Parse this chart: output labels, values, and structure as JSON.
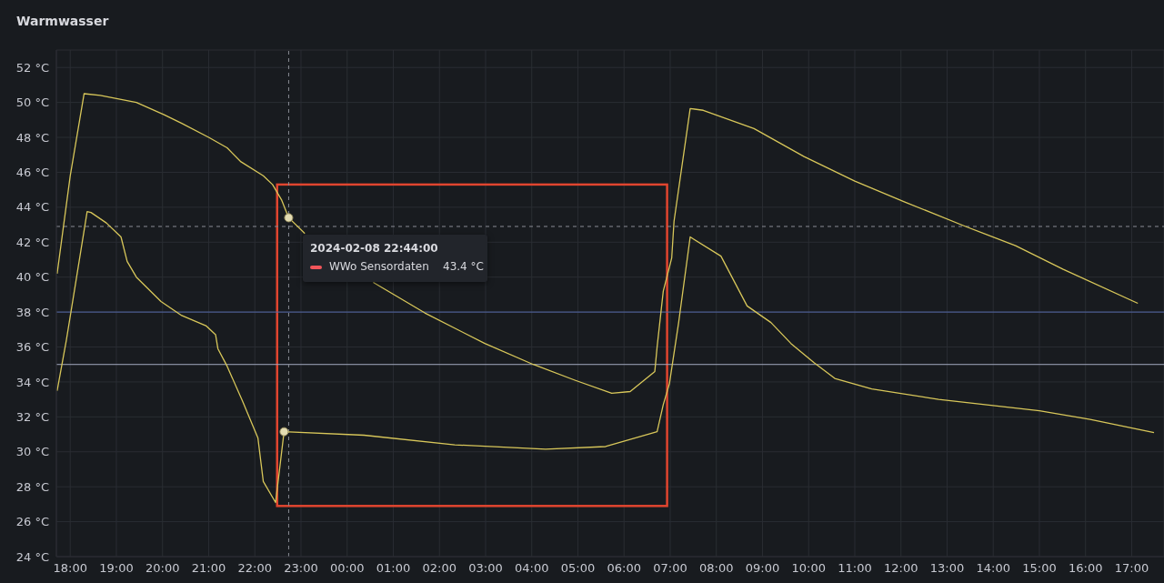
{
  "chart_data": {
    "type": "line",
    "title": "Warmwasser",
    "xlim": [
      "2024-02-08T17:42",
      "2024-02-09T17:42"
    ],
    "xticks": [
      {
        "value": "2024-02-08T18:00",
        "label": "18:00"
      },
      {
        "value": "2024-02-08T19:00",
        "label": "19:00"
      },
      {
        "value": "2024-02-08T20:00",
        "label": "20:00"
      },
      {
        "value": "2024-02-08T21:00",
        "label": "21:00"
      },
      {
        "value": "2024-02-08T22:00",
        "label": "22:00"
      },
      {
        "value": "2024-02-08T23:00",
        "label": "23:00"
      },
      {
        "value": "2024-02-09T00:00",
        "label": "00:00"
      },
      {
        "value": "2024-02-09T01:00",
        "label": "01:00"
      },
      {
        "value": "2024-02-09T02:00",
        "label": "02:00"
      },
      {
        "value": "2024-02-09T03:00",
        "label": "03:00"
      },
      {
        "value": "2024-02-09T04:00",
        "label": "04:00"
      },
      {
        "value": "2024-02-09T05:00",
        "label": "05:00"
      },
      {
        "value": "2024-02-09T06:00",
        "label": "06:00"
      },
      {
        "value": "2024-02-09T07:00",
        "label": "07:00"
      },
      {
        "value": "2024-02-09T08:00",
        "label": "08:00"
      },
      {
        "value": "2024-02-09T09:00",
        "label": "09:00"
      },
      {
        "value": "2024-02-09T10:00",
        "label": "10:00"
      },
      {
        "value": "2024-02-09T11:00",
        "label": "11:00"
      },
      {
        "value": "2024-02-09T12:00",
        "label": "12:00"
      },
      {
        "value": "2024-02-09T13:00",
        "label": "13:00"
      },
      {
        "value": "2024-02-09T14:00",
        "label": "14:00"
      },
      {
        "value": "2024-02-09T15:00",
        "label": "15:00"
      },
      {
        "value": "2024-02-09T16:00",
        "label": "16:00"
      },
      {
        "value": "2024-02-09T17:00",
        "label": "17:00"
      }
    ],
    "ylim": [
      24,
      53
    ],
    "yticks": [
      {
        "value": 24,
        "label": "24 °C"
      },
      {
        "value": 26,
        "label": "26 °C"
      },
      {
        "value": 28,
        "label": "28 °C"
      },
      {
        "value": 30,
        "label": "30 °C"
      },
      {
        "value": 32,
        "label": "32 °C"
      },
      {
        "value": 34,
        "label": "34 °C"
      },
      {
        "value": 36,
        "label": "36 °C"
      },
      {
        "value": 38,
        "label": "38 °C"
      },
      {
        "value": 40,
        "label": "40 °C"
      },
      {
        "value": 42,
        "label": "42 °C"
      },
      {
        "value": 44,
        "label": "44 °C"
      },
      {
        "value": 46,
        "label": "46 °C"
      },
      {
        "value": 48,
        "label": "48 °C"
      },
      {
        "value": 50,
        "label": "50 °C"
      },
      {
        "value": 52,
        "label": "52 °C"
      }
    ],
    "grid": true,
    "marker": "none",
    "line_style": "solid",
    "series": [
      {
        "color": "#d8c75a",
        "x": [
          "2024-02-08T17:43",
          "2024-02-08T18:00",
          "2024-02-08T18:18",
          "2024-02-08T18:39",
          "2024-02-08T19:26",
          "2024-02-08T20:02",
          "2024-02-08T20:25",
          "2024-02-08T21:00",
          "2024-02-08T21:24",
          "2024-02-08T21:42",
          "2024-02-08T22:11",
          "2024-02-08T22:23",
          "2024-02-08T22:35",
          "2024-02-08T22:44",
          "2024-02-08T23:05",
          "2024-02-08T23:36",
          "2024-02-09T00:34",
          "2024-02-09T01:41",
          "2024-02-09T02:59",
          "2024-02-09T04:02",
          "2024-02-09T04:56",
          "2024-02-09T05:44",
          "2024-02-09T06:08",
          "2024-02-09T06:40",
          "2024-02-09T06:43",
          "2024-02-09T06:51",
          "2024-02-09T07:02",
          "2024-02-09T07:05",
          "2024-02-09T07:26",
          "2024-02-09T07:43",
          "2024-02-09T08:49",
          "2024-02-09T09:54",
          "2024-02-09T11:00",
          "2024-02-09T12:05",
          "2024-02-09T13:24",
          "2024-02-09T14:29",
          "2024-02-09T15:31",
          "2024-02-09T17:08"
        ],
        "values": [
          40.2,
          45.8,
          50.5,
          50.4,
          50.0,
          49.3,
          48.8,
          48.0,
          47.4,
          46.6,
          45.8,
          45.3,
          44.4,
          43.4,
          42.5,
          null,
          39.7,
          37.95,
          36.2,
          35.0,
          34.1,
          33.35,
          33.45,
          34.6,
          36.0,
          39.2,
          41.1,
          43.2,
          49.65,
          49.55,
          48.5,
          46.9,
          45.5,
          44.3,
          42.9,
          41.8,
          40.45,
          38.5
        ]
      },
      {
        "color": "#d8c75a",
        "x": [
          "2024-02-08T17:43",
          "2024-02-08T17:55",
          "2024-02-08T18:09",
          "2024-02-08T18:22",
          "2024-02-08T18:27",
          "2024-02-08T18:47",
          "2024-02-08T19:06",
          "2024-02-08T19:14",
          "2024-02-08T19:26",
          "2024-02-08T19:58",
          "2024-02-08T20:25",
          "2024-02-08T20:57",
          "2024-02-08T21:09",
          "2024-02-08T21:12",
          "2024-02-08T21:24",
          "2024-02-08T21:44",
          "2024-02-08T22:04",
          "2024-02-08T22:11",
          "2024-02-08T22:27",
          "2024-02-08T22:38",
          "2024-02-09T00:22",
          "2024-02-09T02:20",
          "2024-02-09T04:18",
          "2024-02-09T05:36",
          "2024-02-09T06:43",
          "2024-02-09T06:51",
          "2024-02-09T06:59",
          "2024-02-09T07:11",
          "2024-02-09T07:26",
          "2024-02-09T08:06",
          "2024-02-09T08:40",
          "2024-02-09T09:11",
          "2024-02-09T09:37",
          "2024-02-09T10:07",
          "2024-02-09T10:34",
          "2024-02-09T11:22",
          "2024-02-09T12:49",
          "2024-02-09T15:00",
          "2024-02-09T16:06",
          "2024-02-09T17:29"
        ],
        "values": [
          33.5,
          36.4,
          40.2,
          43.75,
          43.7,
          43.1,
          42.3,
          40.9,
          40.0,
          38.6,
          37.8,
          37.2,
          36.7,
          35.9,
          34.9,
          32.9,
          30.8,
          28.3,
          27.1,
          31.15,
          30.95,
          30.4,
          30.15,
          30.3,
          31.15,
          32.7,
          33.9,
          37.4,
          42.3,
          41.2,
          38.35,
          37.4,
          36.2,
          35.1,
          34.2,
          33.6,
          33.0,
          32.35,
          31.85,
          31.1
        ]
      },
      {
        "type": "scatter",
        "marker": "circle",
        "color": "#e3dcb2",
        "x": [
          "2024-02-08T22:44",
          "2024-02-08T22:38"
        ],
        "values": [
          43.4,
          31.15
        ]
      }
    ],
    "ref_lines": [
      {
        "axis": "y",
        "value": 38,
        "color": "#5468a8",
        "line_style": "solid"
      },
      {
        "axis": "y",
        "value": 35,
        "color": "#a3a9c0",
        "line_style": "solid"
      },
      {
        "axis": "y",
        "value": 42.9,
        "color": "#8a8d94",
        "line_style": "dashed"
      },
      {
        "axis": "x",
        "value": "2024-02-08T22:44",
        "color": "#8a8d94",
        "line_style": "dashed"
      }
    ],
    "annotations": [
      "2024-02-08 22:44:00",
      "WWo Sensordaten",
      "43.4 °C"
    ]
  }
}
